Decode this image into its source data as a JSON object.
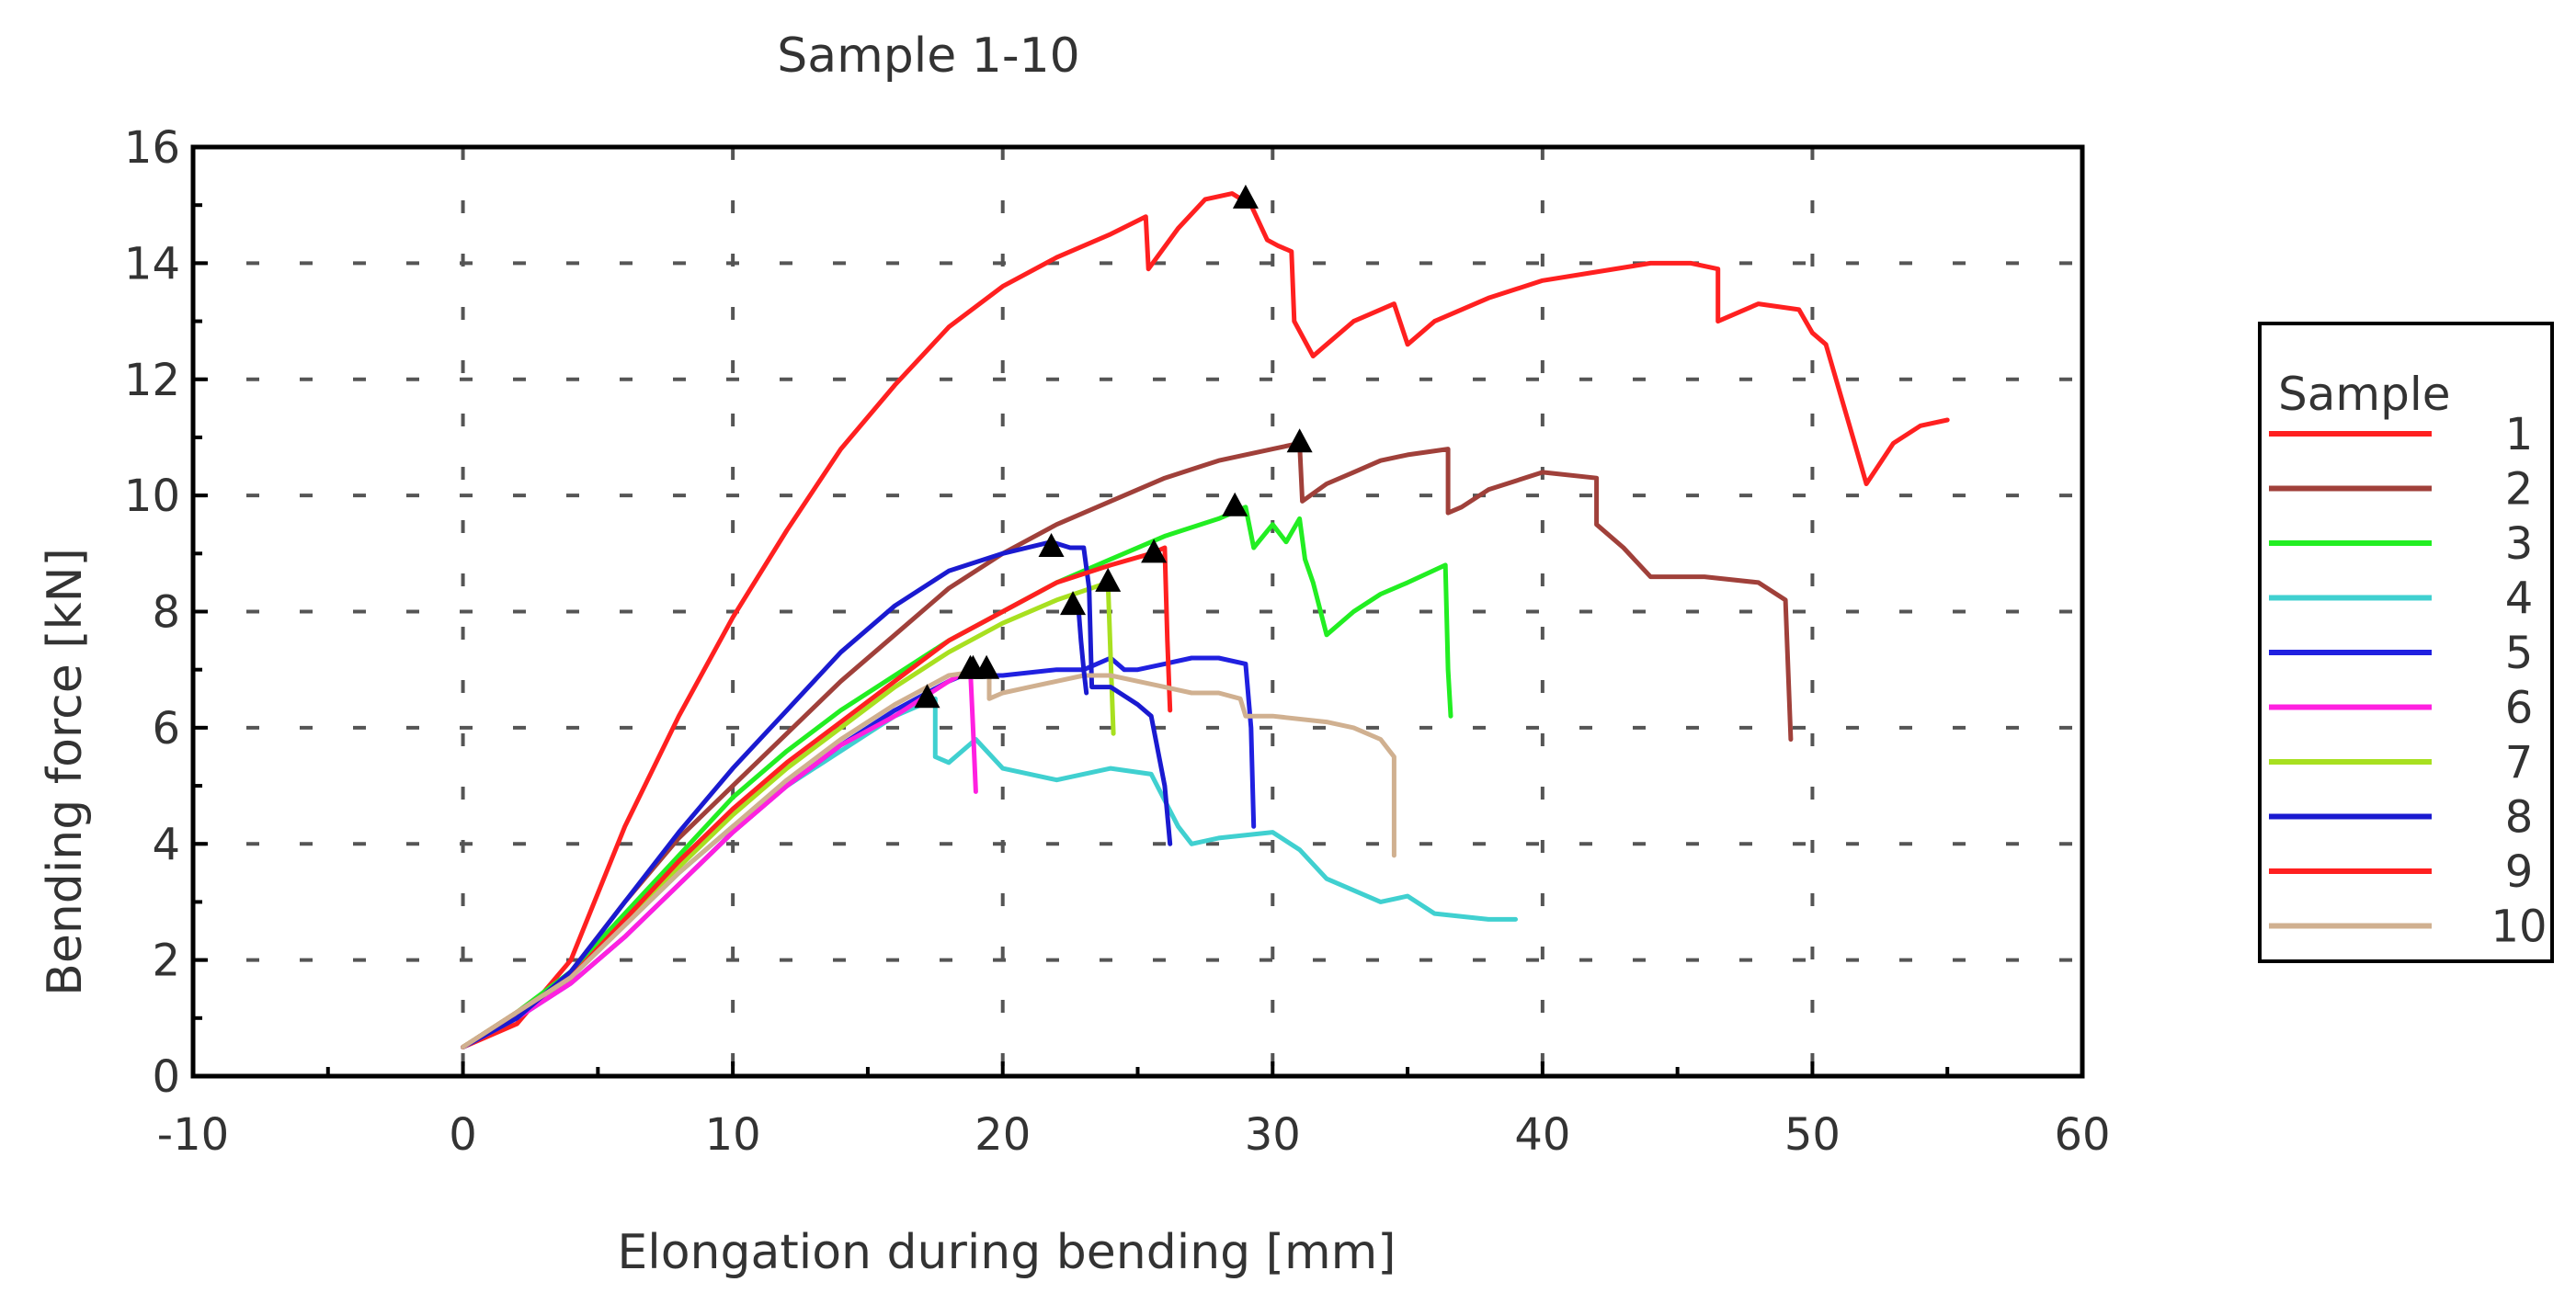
{
  "chart_data": {
    "type": "line",
    "title": "Sample 1-10",
    "xlabel": "Elongation during bending [mm]",
    "ylabel": "Bending force [kN]",
    "xlim": [
      -10,
      60
    ],
    "ylim": [
      0,
      16
    ],
    "xticks": [
      "-10",
      "0",
      "10",
      "20",
      "30",
      "40",
      "50",
      "60"
    ],
    "yticks": [
      "0",
      "2",
      "4",
      "6",
      "8",
      "10",
      "12",
      "14",
      "16"
    ],
    "grid": true,
    "legend": {
      "title": "Sample",
      "position": "right"
    },
    "series": [
      {
        "name": "1",
        "color": "#ff2020",
        "x": [
          0,
          2,
          4,
          6,
          8,
          10,
          12,
          14,
          16,
          18,
          20,
          22,
          24,
          25.3,
          25.4,
          26.5,
          27.5,
          28.5,
          29.2,
          29.8,
          30.2,
          30.7,
          30.8,
          31.5,
          32,
          33,
          34.5,
          35,
          35.5,
          36,
          38,
          40,
          42,
          44,
          45.5,
          46.5,
          46.5,
          47.5,
          48,
          49.5,
          50,
          50.5,
          51,
          51.5,
          52,
          53,
          54,
          55
        ],
        "y": [
          0.5,
          0.9,
          2.0,
          4.3,
          6.2,
          7.9,
          9.4,
          10.8,
          11.9,
          12.9,
          13.6,
          14.1,
          14.5,
          14.8,
          13.9,
          14.6,
          15.1,
          15.2,
          15.0,
          14.4,
          14.3,
          14.2,
          13.0,
          12.4,
          12.6,
          13.0,
          13.3,
          12.6,
          12.8,
          13.0,
          13.4,
          13.7,
          13.85,
          14.0,
          14.0,
          13.9,
          13.0,
          13.2,
          13.3,
          13.2,
          12.8,
          12.6,
          11.8,
          11.0,
          10.2,
          10.9,
          11.2,
          11.3
        ],
        "peak": [
          29.0,
          15.1
        ]
      },
      {
        "name": "2",
        "color": "#a0403a",
        "x": [
          0,
          2,
          4,
          6,
          8,
          10,
          12,
          14,
          16,
          18,
          20,
          22,
          24,
          26,
          28,
          30,
          31,
          31.1,
          32,
          33,
          34,
          35,
          36.5,
          36.5,
          37,
          38,
          40,
          42,
          42,
          43,
          44,
          45,
          46,
          48,
          49,
          49.2
        ],
        "y": [
          0.5,
          1.0,
          1.8,
          3.0,
          4.1,
          5.0,
          5.9,
          6.8,
          7.6,
          8.4,
          9.0,
          9.5,
          9.9,
          10.3,
          10.6,
          10.8,
          10.9,
          9.9,
          10.2,
          10.4,
          10.6,
          10.7,
          10.8,
          9.7,
          9.8,
          10.1,
          10.4,
          10.3,
          9.5,
          9.1,
          8.6,
          8.6,
          8.6,
          8.5,
          8.2,
          5.8
        ],
        "peak": [
          31.0,
          10.9
        ]
      },
      {
        "name": "3",
        "color": "#22ee22",
        "x": [
          0,
          2,
          4,
          6,
          8,
          10,
          12,
          14,
          16,
          18,
          20,
          22,
          24,
          26,
          28,
          29,
          29.3,
          30,
          30.5,
          31,
          31.2,
          31.5,
          32,
          33,
          34,
          35,
          36.4,
          36.5,
          36.6
        ],
        "y": [
          0.5,
          1.1,
          1.8,
          2.8,
          3.8,
          4.8,
          5.6,
          6.3,
          6.9,
          7.5,
          8.0,
          8.5,
          8.9,
          9.3,
          9.6,
          9.8,
          9.1,
          9.5,
          9.2,
          9.6,
          8.9,
          8.5,
          7.6,
          8.0,
          8.3,
          8.5,
          8.8,
          7.0,
          6.2
        ],
        "peak": [
          28.6,
          9.8
        ]
      },
      {
        "name": "4",
        "color": "#40d0d0",
        "x": [
          0,
          2,
          4,
          6,
          8,
          10,
          12,
          14,
          16,
          17.5,
          17.5,
          18,
          19,
          20,
          22,
          24,
          25.5,
          26.5,
          27,
          28,
          30,
          31,
          32,
          34,
          35,
          36,
          38,
          39
        ],
        "y": [
          0.5,
          1.1,
          1.7,
          2.6,
          3.5,
          4.3,
          5.0,
          5.6,
          6.2,
          6.5,
          5.5,
          5.4,
          5.8,
          5.3,
          5.1,
          5.3,
          5.2,
          4.3,
          4.0,
          4.1,
          4.2,
          3.9,
          3.4,
          3.0,
          3.1,
          2.8,
          2.7,
          2.7
        ],
        "peak": [
          17.2,
          6.5
        ]
      },
      {
        "name": "5",
        "color": "#2020e0",
        "x": [
          0,
          2,
          4,
          6,
          8,
          10,
          12,
          14,
          16,
          18,
          19,
          19.5,
          20,
          22,
          23,
          24,
          24.5,
          25,
          26,
          27,
          28,
          29,
          29.2,
          29.3
        ],
        "y": [
          0.5,
          1.0,
          1.6,
          2.4,
          3.3,
          4.2,
          5.0,
          5.7,
          6.3,
          6.8,
          7.0,
          6.9,
          6.9,
          7.0,
          7.0,
          7.2,
          7.0,
          7.0,
          7.1,
          7.2,
          7.2,
          7.1,
          6.0,
          4.3
        ],
        "peak": [
          18.9,
          7.0
        ]
      },
      {
        "name": "6",
        "color": "#ff20e0",
        "x": [
          0,
          2,
          4,
          6,
          8,
          10,
          12,
          14,
          16,
          17,
          18,
          18.8,
          18.9,
          19
        ],
        "y": [
          0.5,
          1.0,
          1.6,
          2.4,
          3.3,
          4.2,
          5.0,
          5.7,
          6.2,
          6.5,
          6.8,
          7.0,
          6.0,
          4.9
        ],
        "peak": [
          18.8,
          7.0
        ]
      },
      {
        "name": "7",
        "color": "#a8e020",
        "x": [
          0,
          2,
          4,
          6,
          8,
          10,
          12,
          14,
          16,
          18,
          20,
          22,
          23.9,
          24,
          24.1
        ],
        "y": [
          0.5,
          1.1,
          1.7,
          2.7,
          3.6,
          4.5,
          5.3,
          6.0,
          6.7,
          7.3,
          7.8,
          8.2,
          8.5,
          7.2,
          5.9
        ],
        "peak": [
          23.9,
          8.5
        ]
      },
      {
        "name": "8",
        "color": "#1a1ad0",
        "x": [
          0,
          2,
          4,
          5,
          6,
          8,
          10,
          12,
          14,
          16,
          18,
          20,
          21.8,
          22.5,
          23,
          23.2,
          23.3,
          24,
          25,
          25.5,
          26,
          26.2
        ],
        "y": [
          0.5,
          1.0,
          1.8,
          2.4,
          3.0,
          4.2,
          5.3,
          6.3,
          7.3,
          8.1,
          8.7,
          9.0,
          9.2,
          9.1,
          9.1,
          8.4,
          6.7,
          6.7,
          6.4,
          6.2,
          5.0,
          4.0
        ],
        "peak": [
          21.8,
          9.1
        ]
      },
      {
        "name": "9",
        "color": "#ff2020",
        "x": [
          0,
          2,
          4,
          6,
          8,
          10,
          12,
          14,
          16,
          18,
          20,
          22,
          24,
          25.5,
          26,
          26.1,
          26.2
        ],
        "y": [
          0.5,
          1.1,
          1.7,
          2.7,
          3.7,
          4.6,
          5.4,
          6.1,
          6.8,
          7.5,
          8.0,
          8.5,
          8.8,
          9.0,
          9.1,
          7.5,
          6.3
        ],
        "peak": [
          25.6,
          9.0
        ]
      },
      {
        "name": "10",
        "color": "#d0b090",
        "x": [
          0,
          2,
          4,
          6,
          8,
          10,
          12,
          14,
          16,
          18,
          19.5,
          19.5,
          20,
          21,
          22,
          23,
          24,
          25,
          26,
          27,
          28,
          28.8,
          29,
          30,
          32,
          33,
          34,
          34.5,
          34.5
        ],
        "y": [
          0.5,
          1.1,
          1.7,
          2.6,
          3.5,
          4.3,
          5.1,
          5.8,
          6.4,
          6.9,
          7.0,
          6.5,
          6.6,
          6.7,
          6.8,
          6.9,
          6.9,
          6.8,
          6.7,
          6.6,
          6.6,
          6.5,
          6.2,
          6.2,
          6.1,
          6.0,
          5.8,
          5.5,
          3.8
        ],
        "peak": [
          19.4,
          7.0
        ]
      },
      {
        "name": "",
        "color": "#1a1ad0",
        "x": [
          22.8,
          22.9,
          23,
          23.1
        ],
        "y": [
          8.1,
          7.5,
          7.0,
          6.6
        ],
        "peak": [
          22.6,
          8.1
        ]
      }
    ]
  }
}
